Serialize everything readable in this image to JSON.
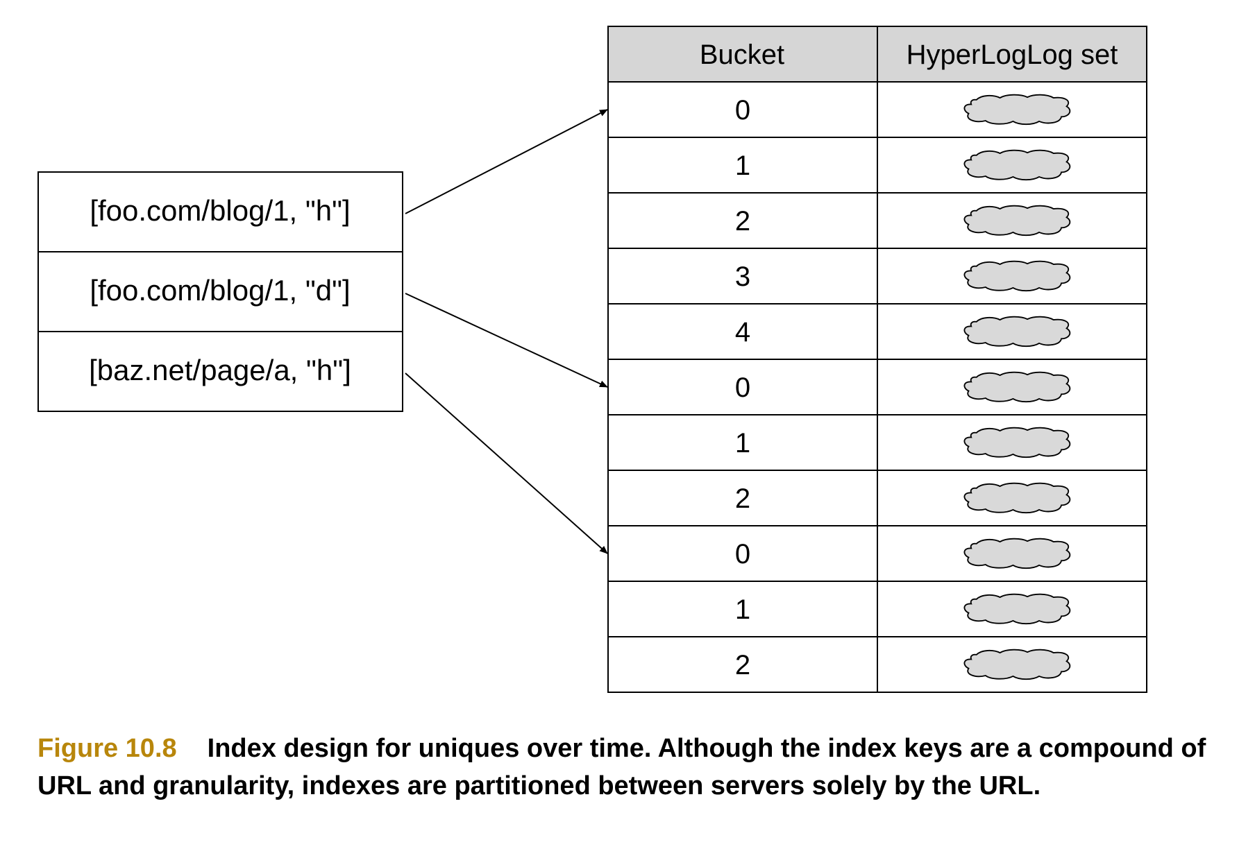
{
  "keys": [
    "[foo.com/blog/1, \"h\"]",
    "[foo.com/blog/1, \"d\"]",
    "[baz.net/page/a, \"h\"]"
  ],
  "table": {
    "headers": [
      "Bucket",
      "HyperLogLog set"
    ],
    "buckets": [
      "0",
      "1",
      "2",
      "3",
      "4",
      "0",
      "1",
      "2",
      "0",
      "1",
      "2"
    ]
  },
  "arrows": [
    {
      "from_key": 0,
      "to_row": 0
    },
    {
      "from_key": 1,
      "to_row": 5
    },
    {
      "from_key": 2,
      "to_row": 8
    }
  ],
  "colors": {
    "header_fill": "#d6d6d6",
    "cloud_fill": "#d9d9d9",
    "caption_label": "#b8860b"
  },
  "caption": {
    "label": "Figure 10.8",
    "text": "Index design for uniques over time. Although the index keys are a compound of URL and granularity, indexes are partitioned between servers solely by the URL."
  }
}
